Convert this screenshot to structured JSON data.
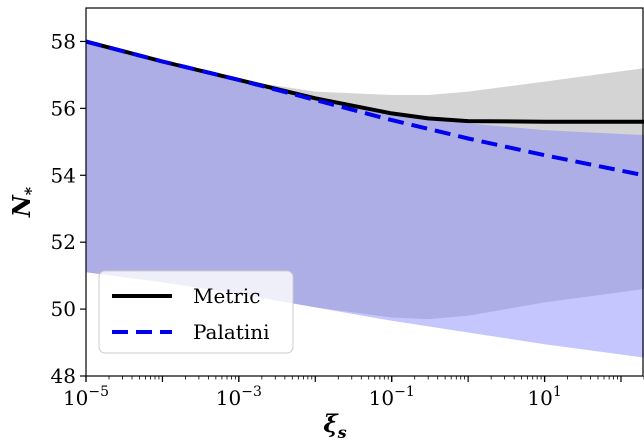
{
  "chart_data": {
    "type": "line",
    "xscale": "log",
    "xlim": [
      1e-05,
      200
    ],
    "ylim": [
      48,
      59
    ],
    "xlabel": "ξs",
    "ylabel": "N*",
    "grid": false,
    "legend_position": "bottom-left",
    "x_ticks": [
      {
        "value": 1e-05,
        "base": "10",
        "exp": "−5"
      },
      {
        "value": 0.001,
        "base": "10",
        "exp": "−3"
      },
      {
        "value": 0.1,
        "base": "10",
        "exp": "−1"
      },
      {
        "value": 10,
        "base": "10",
        "exp": "1"
      }
    ],
    "y_ticks": [
      {
        "value": 48,
        "label": "48"
      },
      {
        "value": 50,
        "label": "50"
      },
      {
        "value": 52,
        "label": "52"
      },
      {
        "value": 54,
        "label": "54"
      },
      {
        "value": 56,
        "label": "56"
      },
      {
        "value": 58,
        "label": "58"
      }
    ],
    "series": [
      {
        "name": "Metric",
        "color": "#000000",
        "style": "solid",
        "x": [
          1e-05,
          0.0001,
          0.001,
          0.01,
          0.1,
          0.3,
          1,
          10,
          200
        ],
        "y": [
          58.0,
          57.4,
          56.85,
          56.3,
          55.85,
          55.7,
          55.62,
          55.6,
          55.6
        ],
        "band_upper": [
          58.0,
          57.4,
          56.85,
          56.5,
          56.4,
          56.4,
          56.5,
          56.8,
          57.2
        ],
        "band_lower": [
          51.1,
          50.8,
          50.45,
          50.05,
          49.75,
          49.7,
          49.8,
          50.2,
          50.6
        ],
        "band_color": "#a0a0a0"
      },
      {
        "name": "Palatini",
        "color": "#0000ee",
        "style": "dashed",
        "x": [
          1e-05,
          0.0001,
          0.001,
          0.01,
          0.1,
          1,
          10,
          200
        ],
        "y": [
          58.0,
          57.4,
          56.85,
          56.25,
          55.65,
          55.1,
          54.6,
          54.0
        ],
        "band_upper": [
          58.0,
          57.4,
          56.85,
          56.3,
          55.85,
          55.55,
          55.35,
          55.2
        ],
        "band_lower": [
          51.1,
          50.8,
          50.45,
          50.05,
          49.65,
          49.3,
          48.95,
          48.55
        ],
        "band_color": "#8080ff"
      }
    ]
  }
}
